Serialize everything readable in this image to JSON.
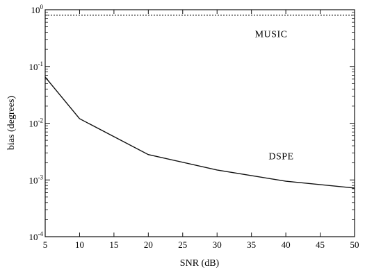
{
  "chart_data": {
    "type": "line",
    "title": "",
    "xlabel": "SNR (dB)",
    "ylabel": "bias (degrees)",
    "xlim": [
      5,
      50
    ],
    "ylim": [
      0.0001,
      1
    ],
    "yscale": "log",
    "grid": false,
    "x_ticks": [
      5,
      10,
      15,
      20,
      25,
      30,
      35,
      40,
      45,
      50
    ],
    "x_tick_labels": [
      "5",
      "10",
      "15",
      "20",
      "25",
      "30",
      "35",
      "40",
      "45",
      "50"
    ],
    "y_ticks": [
      {
        "value": 1,
        "base": "10",
        "exp": "0"
      },
      {
        "value": 0.1,
        "base": "10",
        "exp": "-1"
      },
      {
        "value": 0.01,
        "base": "10",
        "exp": "-2"
      },
      {
        "value": 0.001,
        "base": "10",
        "exp": "-3"
      },
      {
        "value": 0.0001,
        "base": "10",
        "exp": "-4"
      }
    ],
    "series": [
      {
        "name": "MUSIC",
        "style": "dotted",
        "color": "#222222",
        "x": [
          5,
          10,
          20,
          30,
          40,
          50
        ],
        "y": [
          0.8,
          0.8,
          0.8,
          0.8,
          0.8,
          0.8
        ]
      },
      {
        "name": "DSPE",
        "style": "solid",
        "color": "#111111",
        "x": [
          5,
          10,
          20,
          30,
          40,
          50
        ],
        "y": [
          0.065,
          0.012,
          0.0028,
          0.0015,
          0.00095,
          0.00072
        ]
      }
    ],
    "annotations": [
      {
        "text": "MUSIC",
        "x": 35.5,
        "y": 0.33
      },
      {
        "text": "DSPE",
        "x": 37.5,
        "y": 0.0023
      }
    ]
  }
}
